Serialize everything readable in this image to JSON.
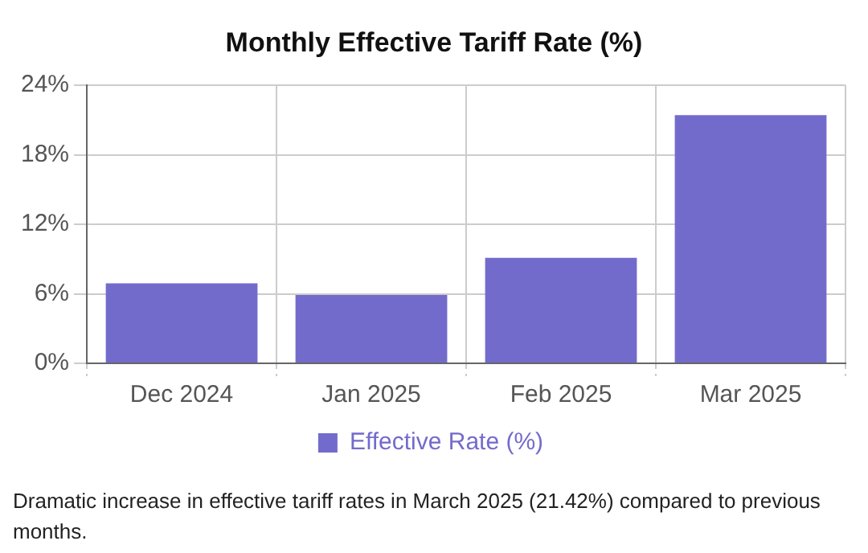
{
  "chart_data": {
    "type": "bar",
    "title": "Monthly Effective Tariff Rate (%)",
    "categories": [
      "Dec 2024",
      "Jan 2025",
      "Feb 2025",
      "Mar 2025"
    ],
    "series": [
      {
        "name": "Effective Rate (%)",
        "color": "#736bcc",
        "values": [
          6.9,
          5.9,
          9.1,
          21.42
        ]
      }
    ],
    "ylim": [
      0,
      24
    ],
    "yticks": [
      {
        "value": 0,
        "label": "0%"
      },
      {
        "value": 6,
        "label": "6%"
      },
      {
        "value": 12,
        "label": "12%"
      },
      {
        "value": 18,
        "label": "18%"
      },
      {
        "value": 24,
        "label": "24%"
      }
    ],
    "grid": true,
    "legend": "bottom",
    "annotations": [
      "Dramatic increase in effective tariff rates in March 2025 (21.42%) compared to previous months."
    ]
  }
}
